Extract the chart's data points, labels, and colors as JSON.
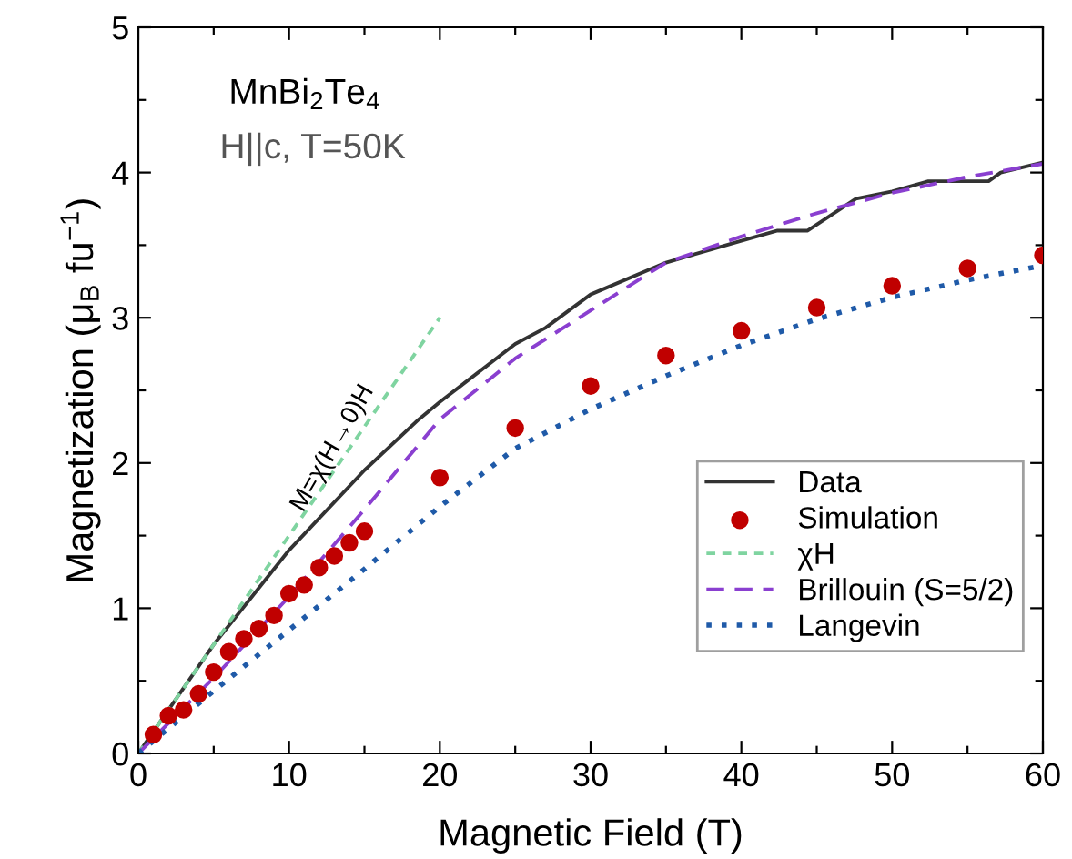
{
  "chart_data": {
    "type": "line",
    "xlabel": "Magnetic Field (T)",
    "ylabel": "Magnetization (μ$_{B}$ fu$^{−1}$)",
    "annotations": [
      "MnBi$_{2}$Te$_{4}$",
      "H||c, T=50K",
      "M=χ(H→0)H"
    ],
    "xlim": [
      0,
      60
    ],
    "ylim": [
      0,
      5
    ],
    "xticks": [
      0,
      {
        "value": 5,
        "label": null
      },
      10,
      {
        "value": 15,
        "label": null
      },
      20,
      {
        "value": 25,
        "label": null
      },
      30,
      {
        "value": 35,
        "label": null
      },
      40,
      {
        "value": 45,
        "label": null
      },
      50,
      {
        "value": 55,
        "label": null
      },
      60
    ],
    "yticks": [
      0,
      {
        "value": 0.5,
        "label": null
      },
      1,
      {
        "value": 1.5,
        "label": null
      },
      2,
      {
        "value": 2.5,
        "label": null
      },
      3,
      {
        "value": 3.5,
        "label": null
      },
      4,
      {
        "value": 4.5,
        "label": null
      },
      5
    ],
    "grid": false,
    "legend": "bottom right",
    "series": [
      {
        "name": "Data",
        "line_style": "solid",
        "color": "#333333",
        "x": [
          0,
          2,
          5,
          10,
          15,
          18.6,
          20,
          25,
          27,
          30,
          35,
          40,
          42.4,
          44.4,
          47.6,
          50,
          52.4,
          56.4,
          57.2,
          60
        ],
        "values": [
          0,
          0.3,
          0.75,
          1.4,
          1.95,
          2.3,
          2.42,
          2.82,
          2.93,
          3.16,
          3.38,
          3.53,
          3.6,
          3.6,
          3.82,
          3.87,
          3.94,
          3.94,
          4.0,
          4.07
        ]
      },
      {
        "name": "Simulation",
        "type": "scatter",
        "marker": "circle",
        "color": "#c00000",
        "x": [
          1,
          2,
          3,
          4,
          5,
          6,
          7,
          8,
          9,
          10,
          11,
          12,
          13,
          14,
          15,
          20,
          25,
          30,
          35,
          40,
          45,
          50,
          55,
          60
        ],
        "values": [
          0.13,
          0.26,
          0.3,
          0.41,
          0.56,
          0.7,
          0.79,
          0.86,
          0.95,
          1.1,
          1.16,
          1.28,
          1.36,
          1.45,
          1.53,
          1.9,
          2.24,
          2.53,
          2.74,
          2.91,
          3.07,
          3.22,
          3.34,
          3.43
        ]
      },
      {
        "name": "χH",
        "type": "line",
        "line_style": "dashed",
        "color": "#7fd4a0",
        "x": [
          0,
          20
        ],
        "values": [
          0,
          3.0
        ]
      },
      {
        "name": "Brillouin (S=5/2)",
        "type": "line",
        "line_style": "dashed",
        "color": "#8a3fd0",
        "x": [
          0,
          5,
          10,
          15,
          20,
          25,
          30,
          35,
          40,
          45,
          50,
          55,
          60
        ],
        "values": [
          0,
          0.52,
          1.08,
          1.68,
          2.3,
          2.72,
          3.05,
          3.38,
          3.56,
          3.72,
          3.86,
          3.97,
          4.06
        ]
      },
      {
        "name": "Langevin",
        "type": "line",
        "line_style": "dotted",
        "color": "#1f5aa8",
        "x": [
          0,
          5,
          10,
          15,
          20,
          25,
          30,
          35,
          40,
          45,
          50,
          55,
          60
        ],
        "values": [
          0,
          0.43,
          0.85,
          1.27,
          1.7,
          2.1,
          2.37,
          2.6,
          2.81,
          2.99,
          3.14,
          3.26,
          3.36
        ]
      }
    ]
  }
}
